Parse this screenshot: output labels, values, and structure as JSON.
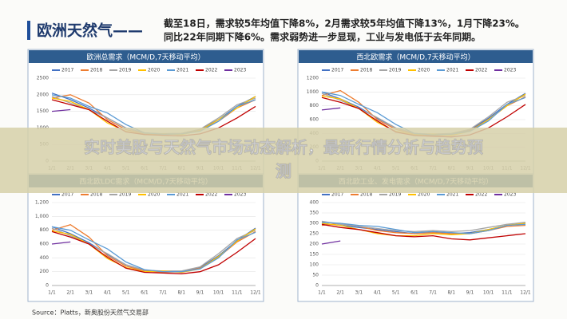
{
  "header": {
    "title": "欧洲天然气——",
    "lines": [
      "截至18日，需求较5年均值下降8%，2月需求较5年均值下降13%，1月下降23%。",
      "同比22年同期下降6%。需求弱势进一步显现，工业与发电低于去年同期。"
    ]
  },
  "banner": {
    "lines": [
      "实时美股与天然气市场动态解析，最新行情分析与趋势预",
      "测"
    ]
  },
  "source": "Source：Platts，新奥股份天然气交易部",
  "chart_data": [
    {
      "type": "line",
      "title": "欧洲总需求（MCM/D,7天移动平均）",
      "categories": [
        "1/1",
        "2/1",
        "3/1",
        "4/1",
        "5/1",
        "6/1",
        "7/1",
        "8/1",
        "9/1",
        "10/1",
        "11/1",
        "12/1"
      ],
      "ylim": [
        0,
        2500
      ],
      "yticks": [
        0,
        500,
        1000,
        1500,
        2000,
        2500
      ],
      "series": [
        {
          "name": "2017",
          "color": "#4472c4",
          "values": [
            2050,
            1850,
            1600,
            1300,
            1000,
            850,
            820,
            830,
            950,
            1250,
            1650,
            1950
          ]
        },
        {
          "name": "2018",
          "color": "#ed7d31",
          "values": [
            1900,
            2000,
            1750,
            1250,
            950,
            830,
            800,
            820,
            930,
            1200,
            1600,
            1850
          ]
        },
        {
          "name": "2019",
          "color": "#a5a5a5",
          "values": [
            1950,
            1750,
            1550,
            1300,
            1000,
            840,
            830,
            840,
            960,
            1300,
            1700,
            1900
          ]
        },
        {
          "name": "2020",
          "color": "#ffc000",
          "values": [
            1900,
            1800,
            1550,
            1150,
            900,
            800,
            820,
            800,
            920,
            1250,
            1600,
            1950
          ]
        },
        {
          "name": "2021",
          "color": "#5b9bd5",
          "values": [
            2000,
            1900,
            1650,
            1450,
            1100,
            850,
            810,
            820,
            900,
            1200,
            1650,
            1850
          ]
        },
        {
          "name": "2022",
          "color": "#c00000",
          "values": [
            1850,
            1700,
            1550,
            1200,
            880,
            800,
            780,
            760,
            820,
            1000,
            1300,
            1650
          ]
        },
        {
          "name": "2023",
          "color": "#7030a0",
          "values": [
            1500,
            1550,
            null,
            null,
            null,
            null,
            null,
            null,
            null,
            null,
            null,
            null
          ]
        }
      ]
    },
    {
      "type": "line",
      "title": "西北欧需求（MCM/D,7天移动平均）",
      "categories": [
        "1/1",
        "2/1",
        "3/1",
        "4/1",
        "5/1",
        "6/1",
        "7/1",
        "8/1",
        "9/1",
        "10/1",
        "11/1",
        "12/1"
      ],
      "ylim": [
        0,
        1200
      ],
      "yticks": [
        0,
        200,
        400,
        600,
        800,
        1000,
        1200
      ],
      "series": [
        {
          "name": "2017",
          "color": "#4472c4",
          "values": [
            1000,
            900,
            780,
            620,
            480,
            400,
            380,
            390,
            450,
            620,
            820,
            980
          ]
        },
        {
          "name": "2018",
          "color": "#ed7d31",
          "values": [
            950,
            1020,
            850,
            600,
            460,
            390,
            370,
            380,
            440,
            600,
            800,
            930
          ]
        },
        {
          "name": "2019",
          "color": "#a5a5a5",
          "values": [
            980,
            880,
            760,
            630,
            480,
            400,
            390,
            400,
            460,
            640,
            850,
            950
          ]
        },
        {
          "name": "2020",
          "color": "#ffc000",
          "values": [
            940,
            900,
            760,
            560,
            430,
            380,
            390,
            370,
            430,
            600,
            800,
            970
          ]
        },
        {
          "name": "2021",
          "color": "#5b9bd5",
          "values": [
            1000,
            950,
            820,
            700,
            530,
            400,
            380,
            390,
            430,
            580,
            820,
            920
          ]
        },
        {
          "name": "2022",
          "color": "#c00000",
          "values": [
            920,
            850,
            760,
            580,
            420,
            370,
            360,
            350,
            380,
            480,
            640,
            820
          ]
        },
        {
          "name": "2023",
          "color": "#7030a0",
          "values": [
            740,
            770,
            null,
            null,
            null,
            null,
            null,
            null,
            null,
            null,
            null,
            null
          ]
        }
      ]
    },
    {
      "type": "line",
      "title": "西北欧LDC需求（MCM/D,7天移动平均）",
      "categories": [
        "1/1",
        "2/1",
        "3/1",
        "4/1",
        "5/1",
        "6/1",
        "7/1",
        "8/1",
        "9/1",
        "10/1",
        "11/1",
        "12/1"
      ],
      "ylim": [
        0,
        1200
      ],
      "yticks": [
        0,
        200,
        400,
        600,
        800,
        {
          "value": 1000,
          "label": "1,000"
        },
        {
          "value": 1200,
          "label": "1,200"
        }
      ],
      "series": [
        {
          "name": "2017",
          "color": "#4472c4",
          "values": [
            850,
            750,
            620,
            450,
            300,
            220,
            200,
            200,
            260,
            430,
            650,
            830
          ]
        },
        {
          "name": "2018",
          "color": "#ed7d31",
          "values": [
            800,
            880,
            700,
            430,
            280,
            210,
            190,
            200,
            250,
            410,
            630,
            780
          ]
        },
        {
          "name": "2019",
          "color": "#a5a5a5",
          "values": [
            830,
            720,
            600,
            460,
            300,
            220,
            210,
            210,
            270,
            460,
            680,
            800
          ]
        },
        {
          "name": "2020",
          "color": "#ffc000",
          "values": [
            790,
            740,
            600,
            390,
            260,
            200,
            210,
            190,
            240,
            420,
            640,
            820
          ]
        },
        {
          "name": "2021",
          "color": "#5b9bd5",
          "values": [
            850,
            800,
            660,
            530,
            340,
            230,
            200,
            200,
            240,
            400,
            660,
            770
          ]
        },
        {
          "name": "2022",
          "color": "#c00000",
          "values": [
            780,
            700,
            600,
            410,
            250,
            190,
            180,
            170,
            200,
            300,
            480,
            680
          ]
        },
        {
          "name": "2023",
          "color": "#7030a0",
          "values": [
            600,
            630,
            null,
            null,
            null,
            null,
            null,
            null,
            null,
            null,
            null,
            null
          ]
        }
      ]
    },
    {
      "type": "line",
      "title": "西北欧工业、发电需求（MCM/D,7天移动平均）",
      "categories": [
        "1/1",
        "2/1",
        "3/1",
        "4/1",
        "5/1",
        "6/1",
        "7/1",
        "8/1",
        "9/1",
        "10/1",
        "11/1",
        "12/1"
      ],
      "ylim": [
        0,
        400
      ],
      "yticks": [
        0,
        50,
        100,
        150,
        200,
        250,
        300,
        350,
        400
      ],
      "series": [
        {
          "name": "2017",
          "color": "#4472c4",
          "values": [
            300,
            290,
            280,
            270,
            260,
            250,
            260,
            250,
            255,
            270,
            290,
            300
          ]
        },
        {
          "name": "2018",
          "color": "#ed7d31",
          "values": [
            290,
            300,
            285,
            265,
            255,
            250,
            255,
            250,
            250,
            265,
            285,
            290
          ]
        },
        {
          "name": "2019",
          "color": "#a5a5a5",
          "values": [
            310,
            295,
            285,
            275,
            265,
            260,
            265,
            260,
            265,
            280,
            295,
            305
          ]
        },
        {
          "name": "2020",
          "color": "#ffc000",
          "values": [
            300,
            290,
            270,
            250,
            240,
            240,
            250,
            245,
            250,
            270,
            290,
            300
          ]
        },
        {
          "name": "2021",
          "color": "#5b9bd5",
          "values": [
            305,
            300,
            290,
            285,
            270,
            255,
            260,
            255,
            250,
            265,
            290,
            295
          ]
        },
        {
          "name": "2022",
          "color": "#c00000",
          "values": [
            295,
            280,
            270,
            255,
            240,
            235,
            240,
            225,
            220,
            230,
            240,
            250
          ]
        },
        {
          "name": "2023",
          "color": "#7030a0",
          "values": [
            200,
            215,
            null,
            null,
            null,
            null,
            null,
            null,
            null,
            null,
            null,
            null
          ]
        }
      ]
    }
  ]
}
